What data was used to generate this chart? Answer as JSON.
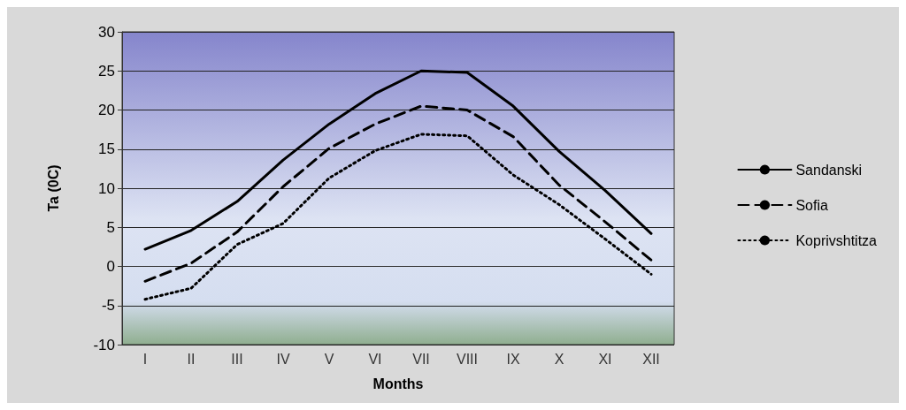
{
  "chart_data": {
    "type": "line",
    "xlabel": "Months",
    "ylabel": "Ta (0C)",
    "categories": [
      "I",
      "II",
      "III",
      "IV",
      "V",
      "VI",
      "VII",
      "VIII",
      "IX",
      "X",
      "XI",
      "XII"
    ],
    "series": [
      {
        "name": "Sandanski",
        "color": "#000000",
        "line_style": "solid",
        "values": [
          2.2,
          4.6,
          8.3,
          13.6,
          18.2,
          22.1,
          25.0,
          24.8,
          20.5,
          14.7,
          9.7,
          4.2
        ]
      },
      {
        "name": "Sofia",
        "color": "#000000",
        "line_style": "dashed",
        "values": [
          -1.9,
          0.4,
          4.4,
          10.2,
          15.1,
          18.2,
          20.5,
          20.0,
          16.6,
          10.4,
          5.7,
          0.8
        ]
      },
      {
        "name": "Koprivshtitza",
        "color": "#000000",
        "line_style": "dotted",
        "values": [
          -4.2,
          -2.8,
          2.8,
          5.5,
          11.3,
          14.8,
          16.9,
          16.7,
          11.7,
          7.9,
          3.5,
          -1.0
        ]
      }
    ],
    "ylim": [
      -10,
      30
    ],
    "yticks": [
      -10,
      -5,
      0,
      5,
      10,
      15,
      20,
      25,
      30
    ],
    "grid": "y",
    "legend": "right",
    "marker": "none"
  }
}
